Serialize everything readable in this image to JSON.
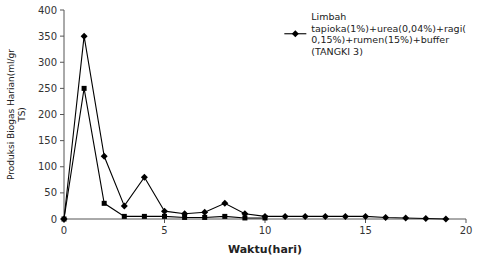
{
  "chart_data": {
    "type": "line",
    "series": [
      {
        "name": "Limbah\ntapioka(1%)+urea(0,04%)+ragi(\n0,15%)+rumen(15%)+buffer\n(TANGKI 3)",
        "color": "#000000",
        "marker": "diamond",
        "x": [
          0,
          1,
          2,
          3,
          4,
          5,
          6,
          7,
          8,
          9,
          10,
          11,
          12,
          13,
          14,
          15,
          16,
          17,
          18,
          19
        ],
        "values": [
          0,
          350,
          120,
          25,
          80,
          15,
          10,
          13,
          30,
          10,
          5,
          5,
          5,
          5,
          5,
          5,
          3,
          2,
          1,
          0
        ]
      },
      {
        "color": "#000000",
        "marker": "square",
        "x": [
          0,
          1,
          2,
          3,
          4,
          5,
          6,
          7,
          8,
          9,
          10
        ],
        "values": [
          0,
          250,
          30,
          5,
          5,
          5,
          3,
          3,
          5,
          2,
          2
        ]
      }
    ],
    "xlabel": "Waktu(hari)",
    "ylabel": "Produksi Biogas Harian(ml/gr\nTS)",
    "xlim": [
      0,
      20
    ],
    "ylim": [
      0,
      400
    ],
    "xticks": [
      0,
      5,
      10,
      15,
      20
    ],
    "yticks": [
      0,
      50,
      100,
      150,
      200,
      250,
      300,
      350,
      400
    ],
    "grid": false,
    "legend": "upper right"
  }
}
